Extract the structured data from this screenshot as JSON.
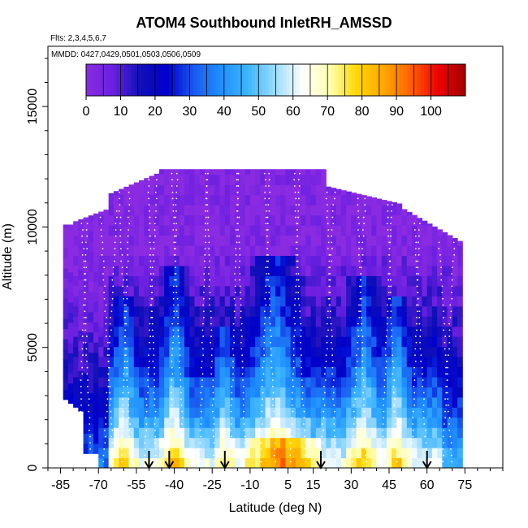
{
  "chart_data": {
    "type": "heatmap",
    "title": "ATOM4 Southbound InletRH_AMSSD",
    "subtitle_flights": "Flts: 2,3,4,5,6,7",
    "subtitle_dates": "MMDD: 0427,0429,0501,0503,0506,0509",
    "xlabel": "Latitude (deg N)",
    "ylabel": "Altitude (m)",
    "xlim": [
      -90,
      90
    ],
    "ylim": [
      0,
      17500
    ],
    "x_ticks": [
      -85,
      -70,
      -55,
      -40,
      -25,
      -10,
      5,
      15,
      30,
      45,
      60,
      75
    ],
    "x_tick_labels": [
      "-85",
      "-70",
      "-55",
      "-40",
      "-25",
      "-10",
      "5",
      "15",
      "30",
      "45",
      "60",
      "75"
    ],
    "y_ticks": [
      0,
      5000,
      10000,
      15000
    ],
    "y_tick_labels": [
      "0",
      "5000",
      "10000",
      "15000"
    ],
    "colorbar": {
      "range": [
        0,
        110
      ],
      "ticks": [
        0,
        10,
        20,
        30,
        40,
        50,
        60,
        70,
        80,
        90,
        100
      ],
      "tick_labels": [
        "0",
        "10",
        "20",
        "30",
        "40",
        "50",
        "60",
        "70",
        "80",
        "90",
        "100"
      ],
      "colors": [
        "#8a2be2",
        "#6a1fe0",
        "#1010b8",
        "#0000cd",
        "#1a5cf0",
        "#1e90ff",
        "#3fb6ff",
        "#9fdcff",
        "#ffffff",
        "#ffffb0",
        "#ffd700",
        "#ffa500",
        "#ff6000",
        "#ee0000",
        "#a00000"
      ]
    },
    "arrows_latitude": [
      -50,
      -42,
      -20,
      18,
      60
    ],
    "description": "Relative humidity (%) curtain: low values (~0-10) aloft above 8000 m, moist boundary layer below 2000 m with a maximum (~90-100) near the equator (-10 to 15 deg N) below 1000 m."
  }
}
